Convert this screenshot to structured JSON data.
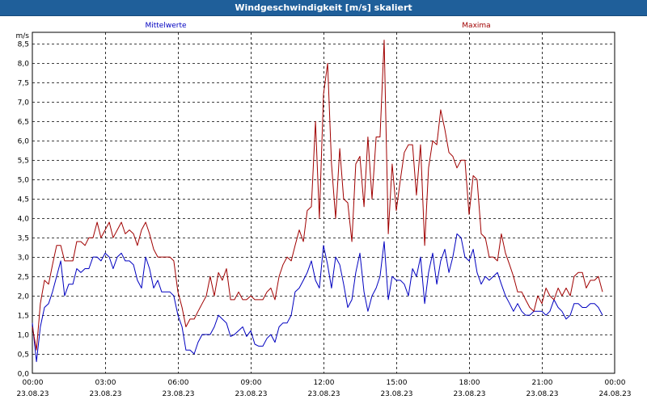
{
  "window": {
    "title": "Windgeschwindigkeit [m/s] skaliert"
  },
  "chart_data": {
    "type": "line",
    "ylabel": "m/s",
    "ylim": [
      0,
      8.8
    ],
    "yticks": [
      0.0,
      0.5,
      1.0,
      1.5,
      2.0,
      2.5,
      3.0,
      3.5,
      4.0,
      4.5,
      5.0,
      5.5,
      6.0,
      6.5,
      7.0,
      7.5,
      8.0,
      8.5
    ],
    "ytick_labels": [
      "0,0",
      "0,5",
      "1,0",
      "1,5",
      "2,0",
      "2,5",
      "3,0",
      "3,5",
      "4,0",
      "4,5",
      "5,0",
      "5,5",
      "6,0",
      "6,5",
      "7,0",
      "7,5",
      "8,0",
      "8,5"
    ],
    "xlim": [
      0,
      24
    ],
    "xticks": [
      {
        "hour": 0,
        "time": "00:00",
        "date": "23.08.23"
      },
      {
        "hour": 3,
        "time": "03:00",
        "date": "23.08.23"
      },
      {
        "hour": 6,
        "time": "06:00",
        "date": "23.08.23"
      },
      {
        "hour": 9,
        "time": "09:00",
        "date": "23.08.23"
      },
      {
        "hour": 12,
        "time": "12:00",
        "date": "23.08.23"
      },
      {
        "hour": 15,
        "time": "15:00",
        "date": "23.08.23"
      },
      {
        "hour": 18,
        "time": "18:00",
        "date": "23.08.23"
      },
      {
        "hour": 21,
        "time": "21:00",
        "date": "23.08.23"
      },
      {
        "hour": 24,
        "time": "00:00",
        "date": "24.08.23"
      }
    ],
    "grid": true,
    "series": [
      {
        "name": "Mittelwerte",
        "color": "#0000c0",
        "points": [
          [
            0.0,
            1.3
          ],
          [
            0.17,
            0.3
          ],
          [
            0.33,
            1.2
          ],
          [
            0.5,
            1.7
          ],
          [
            0.67,
            1.8
          ],
          [
            0.83,
            2.1
          ],
          [
            1.0,
            2.5
          ],
          [
            1.17,
            2.9
          ],
          [
            1.33,
            2.0
          ],
          [
            1.5,
            2.3
          ],
          [
            1.67,
            2.3
          ],
          [
            1.83,
            2.7
          ],
          [
            2.0,
            2.6
          ],
          [
            2.17,
            2.7
          ],
          [
            2.33,
            2.7
          ],
          [
            2.5,
            3.0
          ],
          [
            2.67,
            3.0
          ],
          [
            2.83,
            2.9
          ],
          [
            3.0,
            3.1
          ],
          [
            3.17,
            3.0
          ],
          [
            3.33,
            2.7
          ],
          [
            3.5,
            3.0
          ],
          [
            3.67,
            3.1
          ],
          [
            3.83,
            2.9
          ],
          [
            4.0,
            2.9
          ],
          [
            4.17,
            2.8
          ],
          [
            4.33,
            2.4
          ],
          [
            4.5,
            2.2
          ],
          [
            4.67,
            3.0
          ],
          [
            4.83,
            2.7
          ],
          [
            5.0,
            2.2
          ],
          [
            5.17,
            2.4
          ],
          [
            5.33,
            2.1
          ],
          [
            5.5,
            2.1
          ],
          [
            5.67,
            2.1
          ],
          [
            5.83,
            2.0
          ],
          [
            6.0,
            1.5
          ],
          [
            6.17,
            1.2
          ],
          [
            6.33,
            0.6
          ],
          [
            6.5,
            0.6
          ],
          [
            6.67,
            0.5
          ],
          [
            6.83,
            0.8
          ],
          [
            7.0,
            1.0
          ],
          [
            7.17,
            1.0
          ],
          [
            7.33,
            1.0
          ],
          [
            7.5,
            1.2
          ],
          [
            7.67,
            1.5
          ],
          [
            7.83,
            1.4
          ],
          [
            8.0,
            1.3
          ],
          [
            8.17,
            0.95
          ],
          [
            8.33,
            1.0
          ],
          [
            8.5,
            1.1
          ],
          [
            8.67,
            1.2
          ],
          [
            8.83,
            0.95
          ],
          [
            9.0,
            1.1
          ],
          [
            9.17,
            0.75
          ],
          [
            9.33,
            0.7
          ],
          [
            9.5,
            0.7
          ],
          [
            9.67,
            0.9
          ],
          [
            9.83,
            1.0
          ],
          [
            10.0,
            0.8
          ],
          [
            10.17,
            1.2
          ],
          [
            10.33,
            1.3
          ],
          [
            10.5,
            1.3
          ],
          [
            10.67,
            1.5
          ],
          [
            10.83,
            2.1
          ],
          [
            11.0,
            2.2
          ],
          [
            11.17,
            2.4
          ],
          [
            11.33,
            2.6
          ],
          [
            11.5,
            2.9
          ],
          [
            11.67,
            2.4
          ],
          [
            11.83,
            2.2
          ],
          [
            12.0,
            3.3
          ],
          [
            12.17,
            2.8
          ],
          [
            12.33,
            2.2
          ],
          [
            12.5,
            3.0
          ],
          [
            12.67,
            2.8
          ],
          [
            12.83,
            2.3
          ],
          [
            13.0,
            1.7
          ],
          [
            13.17,
            1.9
          ],
          [
            13.33,
            2.6
          ],
          [
            13.5,
            3.1
          ],
          [
            13.67,
            2.1
          ],
          [
            13.83,
            1.6
          ],
          [
            14.0,
            2.0
          ],
          [
            14.17,
            2.2
          ],
          [
            14.33,
            2.5
          ],
          [
            14.5,
            3.4
          ],
          [
            14.67,
            1.9
          ],
          [
            14.83,
            2.5
          ],
          [
            15.0,
            2.4
          ],
          [
            15.17,
            2.4
          ],
          [
            15.33,
            2.3
          ],
          [
            15.5,
            2.0
          ],
          [
            15.67,
            2.7
          ],
          [
            15.83,
            2.5
          ],
          [
            16.0,
            3.0
          ],
          [
            16.17,
            1.8
          ],
          [
            16.33,
            2.6
          ],
          [
            16.5,
            3.1
          ],
          [
            16.67,
            2.3
          ],
          [
            16.83,
            2.9
          ],
          [
            17.0,
            3.2
          ],
          [
            17.17,
            2.6
          ],
          [
            17.33,
            3.0
          ],
          [
            17.5,
            3.6
          ],
          [
            17.67,
            3.5
          ],
          [
            17.83,
            3.0
          ],
          [
            18.0,
            2.9
          ],
          [
            18.17,
            3.2
          ],
          [
            18.33,
            2.6
          ],
          [
            18.5,
            2.3
          ],
          [
            18.67,
            2.5
          ],
          [
            18.83,
            2.4
          ],
          [
            19.0,
            2.5
          ],
          [
            19.17,
            2.6
          ],
          [
            19.33,
            2.3
          ],
          [
            19.5,
            2.0
          ],
          [
            19.67,
            1.8
          ],
          [
            19.83,
            1.6
          ],
          [
            20.0,
            1.8
          ],
          [
            20.17,
            1.6
          ],
          [
            20.33,
            1.5
          ],
          [
            20.5,
            1.5
          ],
          [
            20.67,
            1.6
          ],
          [
            20.83,
            1.6
          ],
          [
            21.0,
            1.6
          ],
          [
            21.17,
            1.5
          ],
          [
            21.33,
            1.6
          ],
          [
            21.5,
            1.9
          ],
          [
            21.67,
            1.7
          ],
          [
            21.83,
            1.6
          ],
          [
            22.0,
            1.4
          ],
          [
            22.17,
            1.5
          ],
          [
            22.33,
            1.8
          ],
          [
            22.5,
            1.8
          ],
          [
            22.67,
            1.7
          ],
          [
            22.83,
            1.7
          ],
          [
            23.0,
            1.8
          ],
          [
            23.17,
            1.8
          ],
          [
            23.33,
            1.7
          ],
          [
            23.5,
            1.5
          ]
        ]
      },
      {
        "name": "Maxima",
        "color": "#a00000",
        "points": [
          [
            0.0,
            1.2
          ],
          [
            0.17,
            0.6
          ],
          [
            0.33,
            1.8
          ],
          [
            0.5,
            2.4
          ],
          [
            0.67,
            2.3
          ],
          [
            0.83,
            2.8
          ],
          [
            1.0,
            3.3
          ],
          [
            1.17,
            3.3
          ],
          [
            1.33,
            2.9
          ],
          [
            1.5,
            2.9
          ],
          [
            1.67,
            2.9
          ],
          [
            1.83,
            3.4
          ],
          [
            2.0,
            3.4
          ],
          [
            2.17,
            3.3
          ],
          [
            2.33,
            3.5
          ],
          [
            2.5,
            3.5
          ],
          [
            2.67,
            3.9
          ],
          [
            2.83,
            3.5
          ],
          [
            3.0,
            3.7
          ],
          [
            3.17,
            3.9
          ],
          [
            3.33,
            3.5
          ],
          [
            3.5,
            3.7
          ],
          [
            3.67,
            3.9
          ],
          [
            3.83,
            3.6
          ],
          [
            4.0,
            3.7
          ],
          [
            4.17,
            3.6
          ],
          [
            4.33,
            3.3
          ],
          [
            4.5,
            3.7
          ],
          [
            4.67,
            3.9
          ],
          [
            4.83,
            3.6
          ],
          [
            5.0,
            3.2
          ],
          [
            5.17,
            3.0
          ],
          [
            5.33,
            3.0
          ],
          [
            5.5,
            3.0
          ],
          [
            5.67,
            3.0
          ],
          [
            5.83,
            2.9
          ],
          [
            6.0,
            2.1
          ],
          [
            6.17,
            1.7
          ],
          [
            6.33,
            1.2
          ],
          [
            6.5,
            1.4
          ],
          [
            6.67,
            1.4
          ],
          [
            6.83,
            1.6
          ],
          [
            7.0,
            1.8
          ],
          [
            7.17,
            2.0
          ],
          [
            7.33,
            2.5
          ],
          [
            7.5,
            2.0
          ],
          [
            7.67,
            2.6
          ],
          [
            7.83,
            2.4
          ],
          [
            8.0,
            2.7
          ],
          [
            8.17,
            1.9
          ],
          [
            8.33,
            1.9
          ],
          [
            8.5,
            2.1
          ],
          [
            8.67,
            1.9
          ],
          [
            8.83,
            1.9
          ],
          [
            9.0,
            2.0
          ],
          [
            9.17,
            1.9
          ],
          [
            9.33,
            1.9
          ],
          [
            9.5,
            1.9
          ],
          [
            9.67,
            2.1
          ],
          [
            9.83,
            2.2
          ],
          [
            10.0,
            1.9
          ],
          [
            10.17,
            2.5
          ],
          [
            10.33,
            2.8
          ],
          [
            10.5,
            3.0
          ],
          [
            10.67,
            2.9
          ],
          [
            10.83,
            3.3
          ],
          [
            11.0,
            3.7
          ],
          [
            11.17,
            3.4
          ],
          [
            11.33,
            4.2
          ],
          [
            11.5,
            4.3
          ],
          [
            11.67,
            6.5
          ],
          [
            11.83,
            4.0
          ],
          [
            12.0,
            7.2
          ],
          [
            12.17,
            8.0
          ],
          [
            12.33,
            5.4
          ],
          [
            12.5,
            4.0
          ],
          [
            12.67,
            5.8
          ],
          [
            12.83,
            4.5
          ],
          [
            13.0,
            4.4
          ],
          [
            13.17,
            3.4
          ],
          [
            13.33,
            5.4
          ],
          [
            13.5,
            5.6
          ],
          [
            13.67,
            4.3
          ],
          [
            13.83,
            6.1
          ],
          [
            14.0,
            4.5
          ],
          [
            14.17,
            6.1
          ],
          [
            14.33,
            6.1
          ],
          [
            14.5,
            8.6
          ],
          [
            14.67,
            3.6
          ],
          [
            14.83,
            5.4
          ],
          [
            15.0,
            4.2
          ],
          [
            15.17,
            5.0
          ],
          [
            15.33,
            5.7
          ],
          [
            15.5,
            5.9
          ],
          [
            15.67,
            5.9
          ],
          [
            15.83,
            4.6
          ],
          [
            16.0,
            5.9
          ],
          [
            16.17,
            3.3
          ],
          [
            16.33,
            5.3
          ],
          [
            16.5,
            6.0
          ],
          [
            16.67,
            5.9
          ],
          [
            16.83,
            6.8
          ],
          [
            17.0,
            6.3
          ],
          [
            17.17,
            5.7
          ],
          [
            17.33,
            5.6
          ],
          [
            17.5,
            5.3
          ],
          [
            17.67,
            5.5
          ],
          [
            17.83,
            5.5
          ],
          [
            18.0,
            4.1
          ],
          [
            18.17,
            5.1
          ],
          [
            18.33,
            5.0
          ],
          [
            18.5,
            3.6
          ],
          [
            18.67,
            3.5
          ],
          [
            18.83,
            3.0
          ],
          [
            19.0,
            3.0
          ],
          [
            19.17,
            2.9
          ],
          [
            19.33,
            3.6
          ],
          [
            19.5,
            3.1
          ],
          [
            19.67,
            2.8
          ],
          [
            19.83,
            2.5
          ],
          [
            20.0,
            2.1
          ],
          [
            20.17,
            2.1
          ],
          [
            20.33,
            1.9
          ],
          [
            20.5,
            1.7
          ],
          [
            20.67,
            1.6
          ],
          [
            20.83,
            2.0
          ],
          [
            21.0,
            1.8
          ],
          [
            21.17,
            2.2
          ],
          [
            21.33,
            2.0
          ],
          [
            21.5,
            1.9
          ],
          [
            21.67,
            2.2
          ],
          [
            21.83,
            2.0
          ],
          [
            22.0,
            2.2
          ],
          [
            22.17,
            2.0
          ],
          [
            22.33,
            2.5
          ],
          [
            22.5,
            2.6
          ],
          [
            22.67,
            2.6
          ],
          [
            22.83,
            2.2
          ],
          [
            23.0,
            2.4
          ],
          [
            23.17,
            2.4
          ],
          [
            23.33,
            2.5
          ],
          [
            23.5,
            2.1
          ]
        ]
      }
    ]
  }
}
